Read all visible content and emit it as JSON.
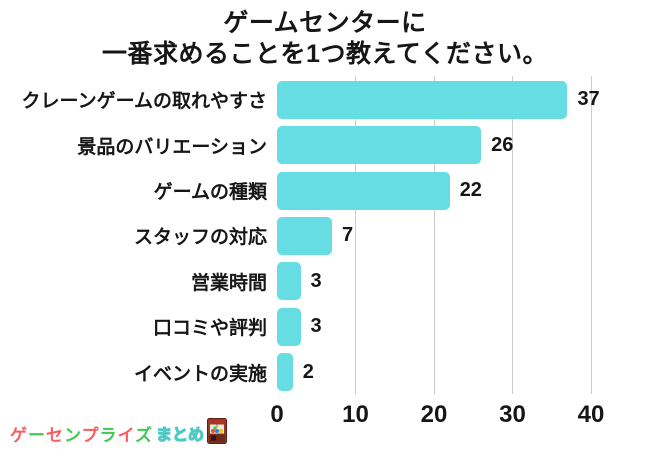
{
  "title": {
    "line1": "ゲームセンターに",
    "line2": "一番求めることを1つ教えてください。"
  },
  "chart_data": {
    "type": "bar",
    "orientation": "horizontal",
    "title": "ゲームセンターに一番求めることを1つ教えてください。",
    "categories": [
      "クレーンゲームの取れやすさ",
      "景品のバリエーション",
      "ゲームの種類",
      "スタッフの対応",
      "営業時間",
      "口コミや評判",
      "イベントの実施"
    ],
    "values": [
      37,
      26,
      22,
      7,
      3,
      3,
      2
    ],
    "x_ticks": [
      0,
      10,
      20,
      30,
      40
    ],
    "xlim": [
      0,
      47
    ],
    "xlabel": "",
    "ylabel": "",
    "grid": true,
    "value_labels": true,
    "legend": false,
    "bar_color": "#66dde2",
    "gridline_color": "#cccccc",
    "text_color": "#161616"
  },
  "logo": {
    "brand_chars": [
      {
        "ch": "ゲ",
        "color": "#fb5c5c"
      },
      {
        "ch": "ー",
        "color": "#3fc94e"
      },
      {
        "ch": "セ",
        "color": "#fb5c5c"
      },
      {
        "ch": "ン",
        "color": "#3fc94e"
      },
      {
        "ch": "プ",
        "color": "#fb5c5c"
      },
      {
        "ch": "ラ",
        "color": "#3fc94e"
      },
      {
        "ch": "イ",
        "color": "#fb5c5c"
      },
      {
        "ch": "ズ",
        "color": "#3fc94e"
      }
    ],
    "suffix": "まとめ",
    "suffix_color": "#4fc9c5",
    "icon": "claw-machine-icon"
  }
}
